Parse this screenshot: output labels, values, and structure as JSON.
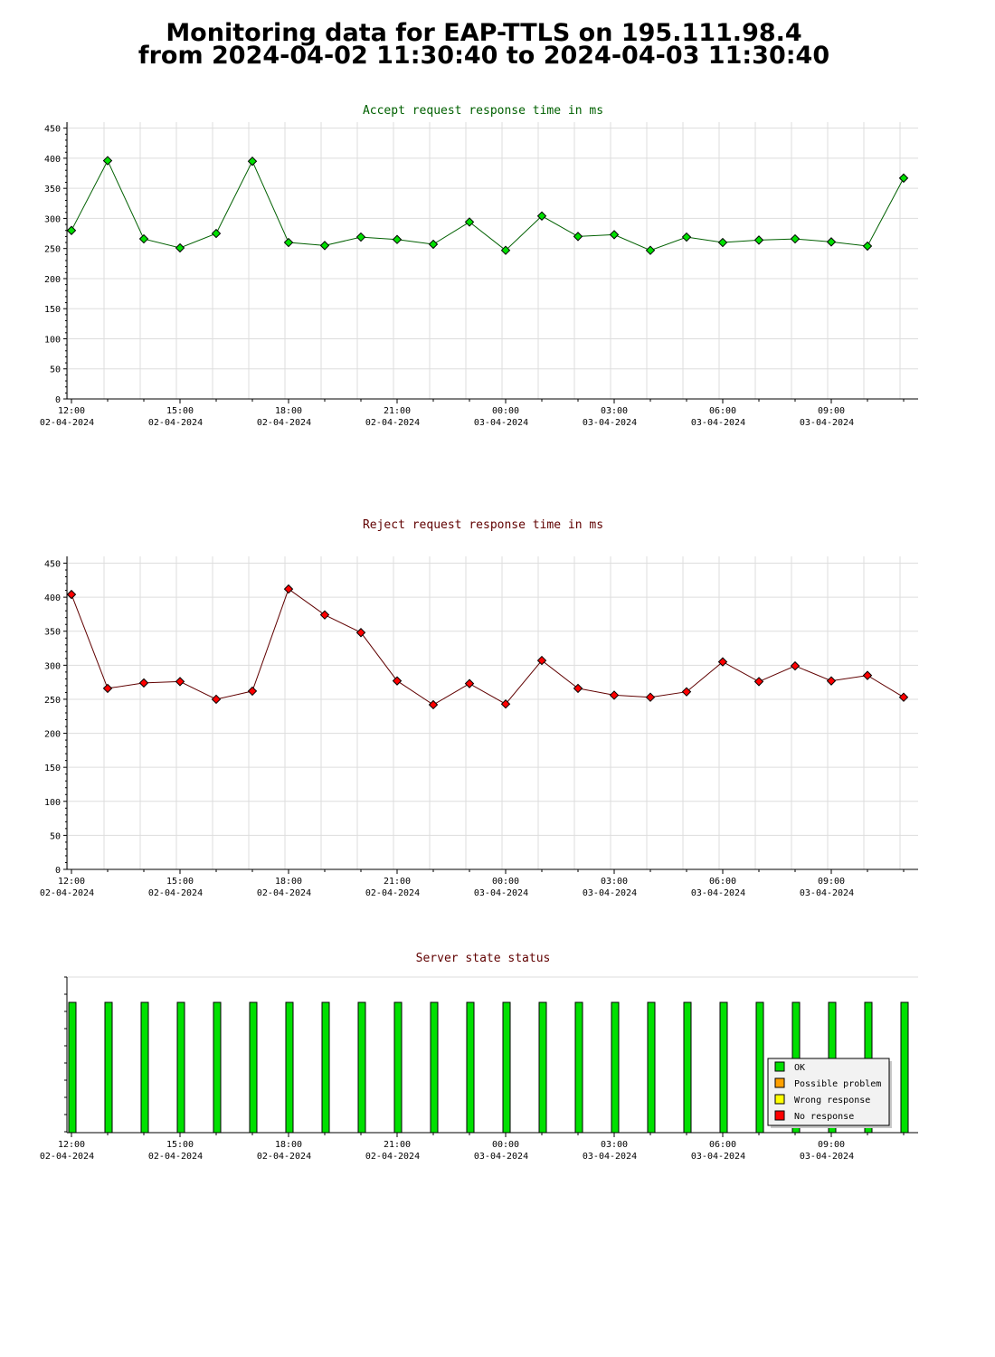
{
  "page": {
    "title_line1": "Monitoring data for EAP-TTLS on 195.111.98.4",
    "title_line2": "from 2024-04-02 11:30:40 to 2024-04-03 11:30:40"
  },
  "colors": {
    "accept_series": "#00e000",
    "accept_line": "#006000",
    "accept_title": "#006000",
    "reject_series": "#ff0000",
    "reject_line": "#600000",
    "reject_title": "#600000",
    "status_ok": "#00e000",
    "status_possible_problem": "#ffa000",
    "status_wrong_response": "#ffff00",
    "status_no_response": "#ff0000",
    "grid": "#dddddd"
  },
  "x_axis": {
    "ticks": [
      {
        "time": "12:00",
        "date": "02-04-2024"
      },
      {
        "time": "15:00",
        "date": "02-04-2024"
      },
      {
        "time": "18:00",
        "date": "02-04-2024"
      },
      {
        "time": "21:00",
        "date": "02-04-2024"
      },
      {
        "time": "00:00",
        "date": "03-04-2024"
      },
      {
        "time": "03:00",
        "date": "03-04-2024"
      },
      {
        "time": "06:00",
        "date": "03-04-2024"
      },
      {
        "time": "09:00",
        "date": "03-04-2024"
      }
    ]
  },
  "chart_data": [
    {
      "type": "line",
      "title": "Accept request response time in ms",
      "xlabel": "",
      "ylabel": "",
      "x": [
        "2024-04-02 12:00",
        "2024-04-02 13:00",
        "2024-04-02 14:00",
        "2024-04-02 15:00",
        "2024-04-02 16:00",
        "2024-04-02 17:00",
        "2024-04-02 18:00",
        "2024-04-02 19:00",
        "2024-04-02 20:00",
        "2024-04-02 21:00",
        "2024-04-02 22:00",
        "2024-04-02 23:00",
        "2024-04-03 00:00",
        "2024-04-03 01:00",
        "2024-04-03 02:00",
        "2024-04-03 03:00",
        "2024-04-03 04:00",
        "2024-04-03 05:00",
        "2024-04-03 06:00",
        "2024-04-03 07:00",
        "2024-04-03 08:00",
        "2024-04-03 09:00",
        "2024-04-03 10:00",
        "2024-04-03 11:00"
      ],
      "values": [
        280,
        396,
        266,
        251,
        275,
        395,
        260,
        255,
        269,
        265,
        257,
        294,
        247,
        304,
        270,
        273,
        247,
        269,
        260,
        264,
        266,
        261,
        254,
        367
      ],
      "ylim": [
        0,
        460
      ],
      "yticks": [
        "0",
        "50",
        "100",
        "150",
        "200",
        "250",
        "300",
        "350",
        "400",
        "450"
      ],
      "grid": true
    },
    {
      "type": "line",
      "title": "Reject request response time in ms",
      "xlabel": "",
      "ylabel": "",
      "x": [
        "2024-04-02 12:00",
        "2024-04-02 13:00",
        "2024-04-02 14:00",
        "2024-04-02 15:00",
        "2024-04-02 16:00",
        "2024-04-02 17:00",
        "2024-04-02 18:00",
        "2024-04-02 19:00",
        "2024-04-02 20:00",
        "2024-04-02 21:00",
        "2024-04-02 22:00",
        "2024-04-02 23:00",
        "2024-04-03 00:00",
        "2024-04-03 01:00",
        "2024-04-03 02:00",
        "2024-04-03 03:00",
        "2024-04-03 04:00",
        "2024-04-03 05:00",
        "2024-04-03 06:00",
        "2024-04-03 07:00",
        "2024-04-03 08:00",
        "2024-04-03 09:00",
        "2024-04-03 10:00",
        "2024-04-03 11:00"
      ],
      "values": [
        404,
        266,
        274,
        276,
        250,
        262,
        412,
        374,
        348,
        277,
        242,
        273,
        243,
        307,
        266,
        256,
        253,
        261,
        305,
        276,
        299,
        277,
        285,
        253
      ],
      "ylim": [
        0,
        460
      ],
      "yticks": [
        "0",
        "50",
        "100",
        "150",
        "200",
        "250",
        "300",
        "350",
        "400",
        "450"
      ],
      "grid": true
    },
    {
      "type": "bar",
      "title": "Server state status",
      "x": [
        "2024-04-02 12:00",
        "2024-04-02 13:00",
        "2024-04-02 14:00",
        "2024-04-02 15:00",
        "2024-04-02 16:00",
        "2024-04-02 17:00",
        "2024-04-02 18:00",
        "2024-04-02 19:00",
        "2024-04-02 20:00",
        "2024-04-02 21:00",
        "2024-04-02 22:00",
        "2024-04-02 23:00",
        "2024-04-03 00:00",
        "2024-04-03 01:00",
        "2024-04-03 02:00",
        "2024-04-03 03:00",
        "2024-04-03 04:00",
        "2024-04-03 05:00",
        "2024-04-03 06:00",
        "2024-04-03 07:00",
        "2024-04-03 08:00",
        "2024-04-03 09:00",
        "2024-04-03 10:00",
        "2024-04-03 11:00"
      ],
      "values": [
        "OK",
        "OK",
        "OK",
        "OK",
        "OK",
        "OK",
        "OK",
        "OK",
        "OK",
        "OK",
        "OK",
        "OK",
        "OK",
        "OK",
        "OK",
        "OK",
        "OK",
        "OK",
        "OK",
        "OK",
        "OK",
        "OK",
        "OK",
        "OK"
      ],
      "legend_position": "bottom-right",
      "legend": [
        {
          "label": "OK",
          "color": "#00e000"
        },
        {
          "label": "Possible problem",
          "color": "#ffa000"
        },
        {
          "label": "Wrong response",
          "color": "#ffff00"
        },
        {
          "label": "No response",
          "color": "#ff0000"
        }
      ]
    }
  ]
}
